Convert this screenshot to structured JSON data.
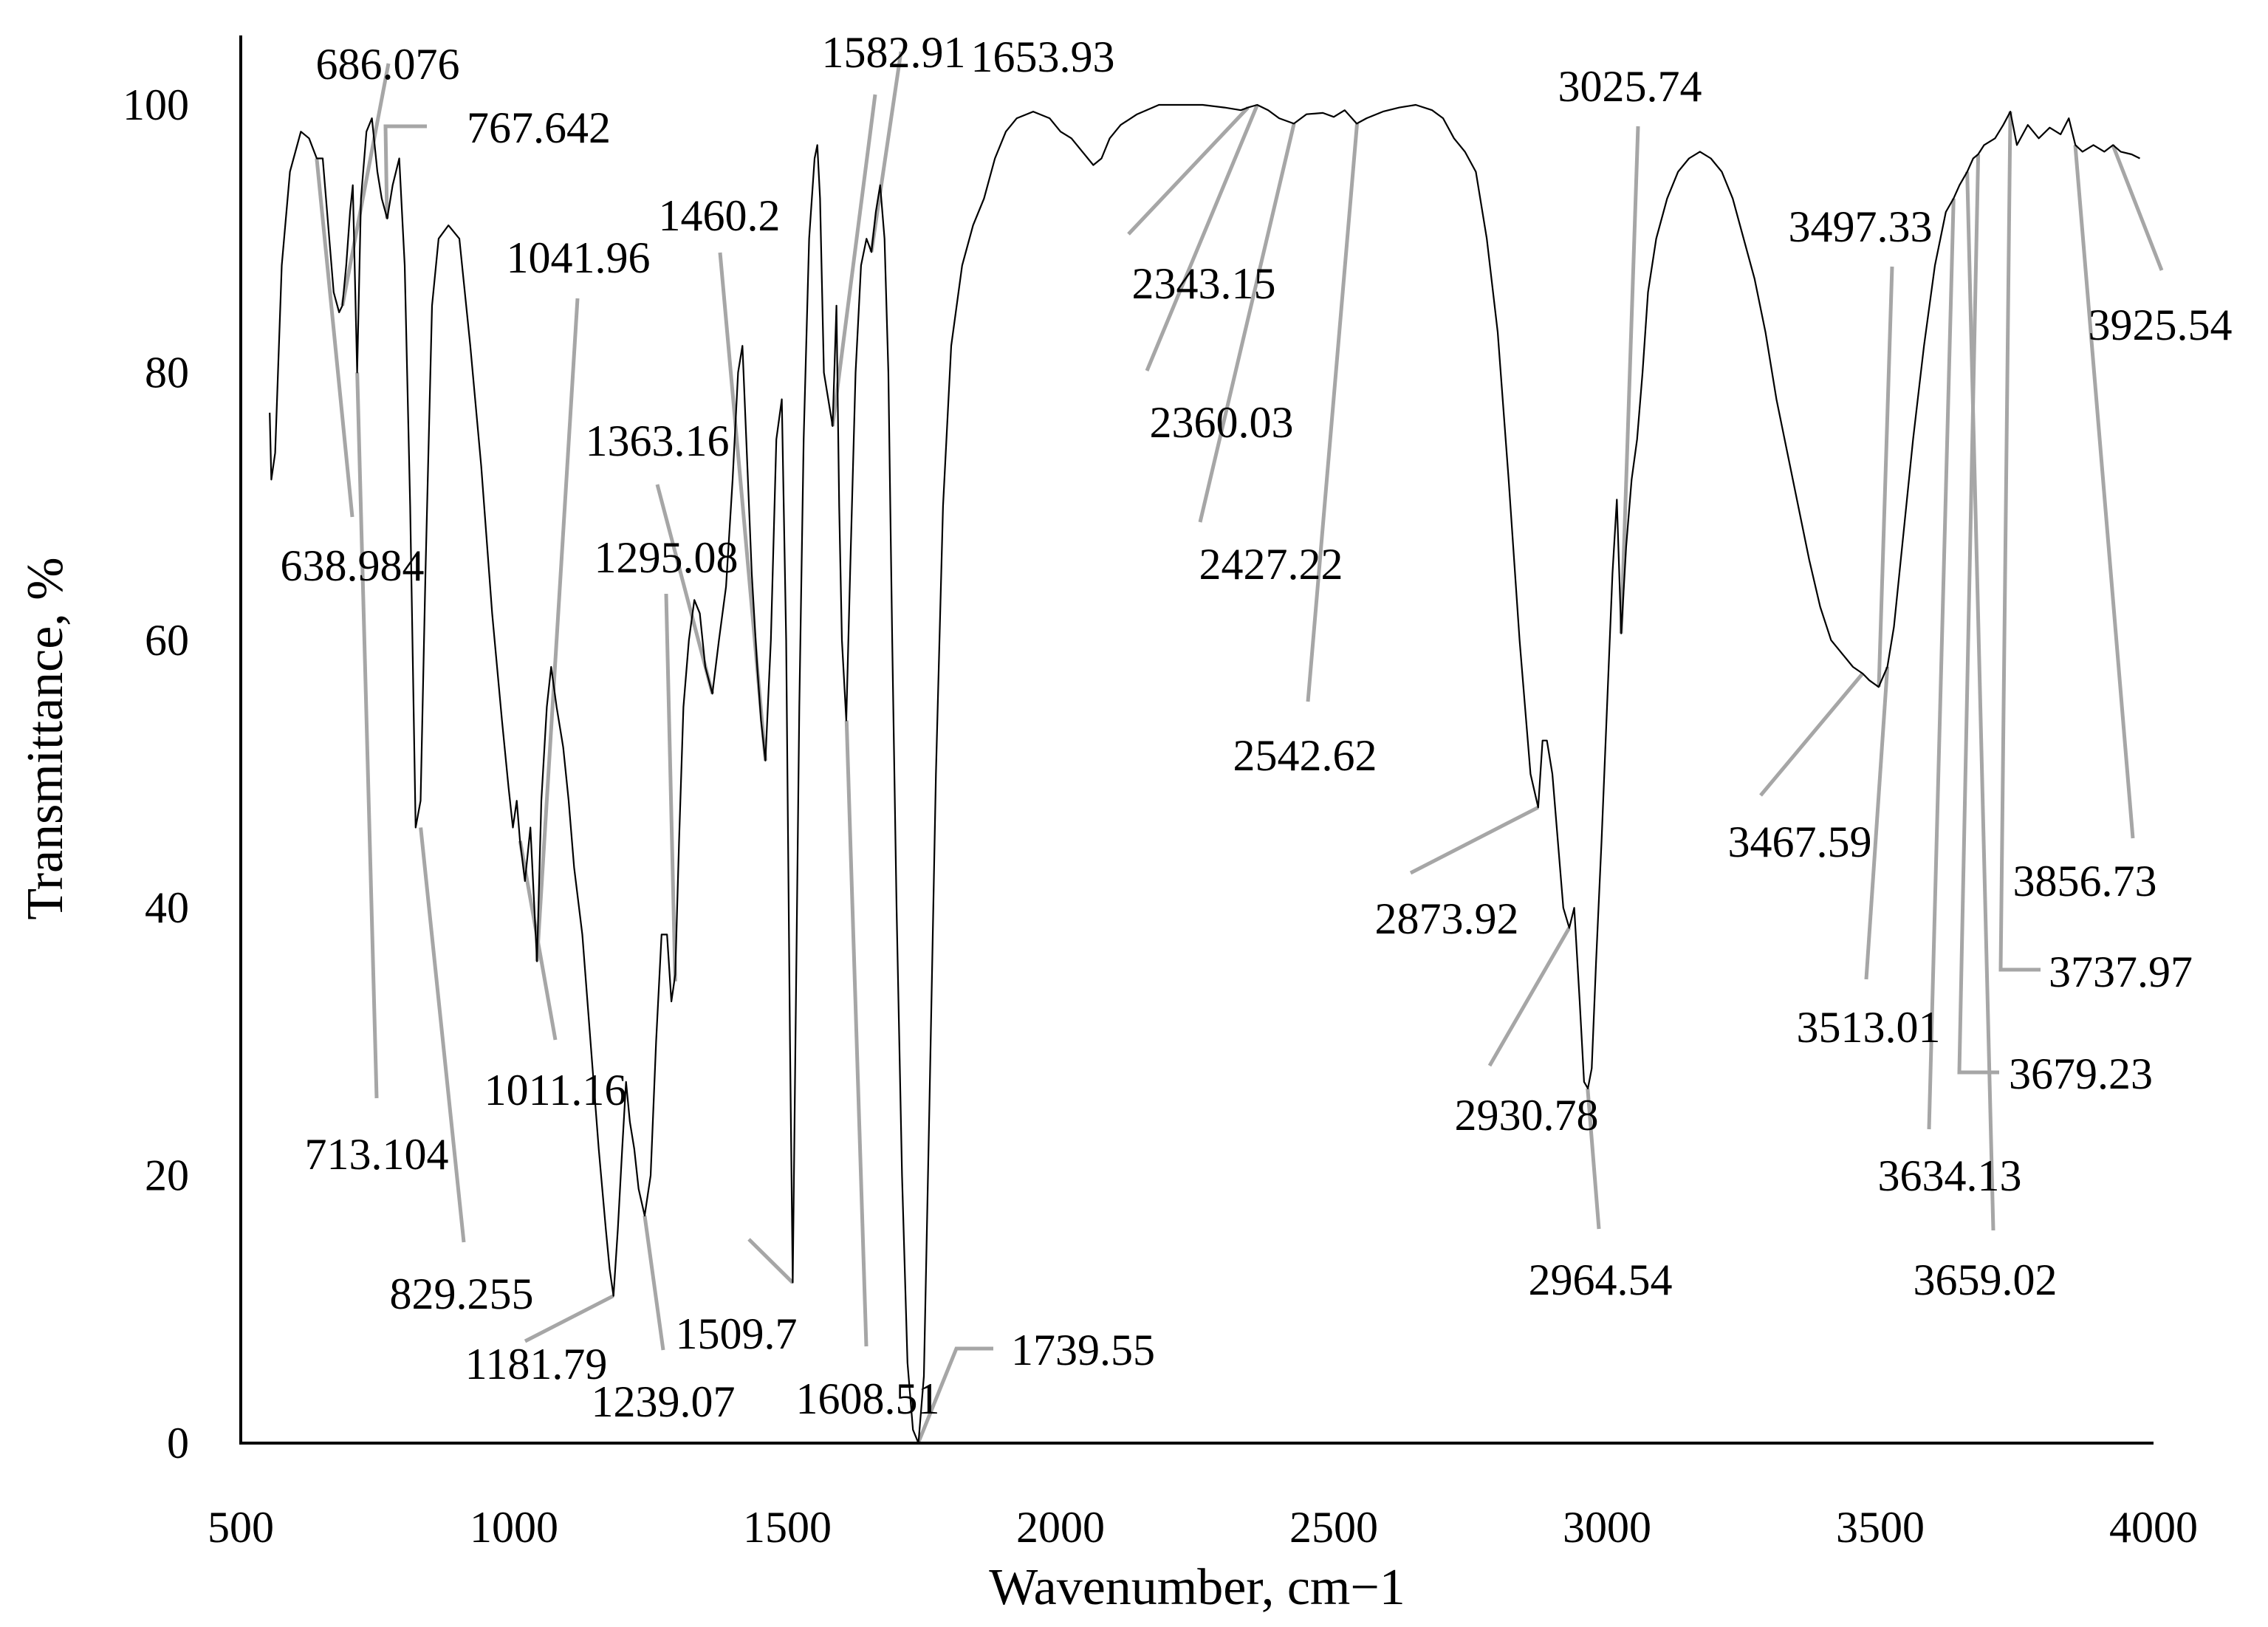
{
  "chart_data": {
    "type": "line",
    "title": "",
    "xlabel": "Wavenumber, cm−1",
    "ylabel": "Transmittance, %",
    "xlim": [
      500,
      4000
    ],
    "ylim": [
      0,
      100
    ],
    "x_ticks": [
      "500",
      "1000",
      "1500",
      "2000",
      "2500",
      "3000",
      "3500",
      "4000"
    ],
    "y_ticks": [
      "0",
      "20",
      "40",
      "60",
      "80",
      "100"
    ],
    "grid": false,
    "legend": "none",
    "series": [
      {
        "color": "#000000",
        "points": [
          [
            553,
            77
          ],
          [
            556,
            72
          ],
          [
            563,
            74
          ],
          [
            575,
            88
          ],
          [
            590,
            95
          ],
          [
            610,
            98
          ],
          [
            625,
            97.5
          ],
          [
            639,
            96
          ],
          [
            650,
            96
          ],
          [
            660,
            91
          ],
          [
            670,
            86
          ],
          [
            680,
            84.5
          ],
          [
            686,
            85
          ],
          [
            693,
            88
          ],
          [
            700,
            92
          ],
          [
            705,
            94
          ],
          [
            713,
            80
          ],
          [
            720,
            93
          ],
          [
            730,
            98
          ],
          [
            740,
            99
          ],
          [
            750,
            95
          ],
          [
            758,
            93
          ],
          [
            768,
            91.5
          ],
          [
            778,
            94
          ],
          [
            790,
            96
          ],
          [
            800,
            88
          ],
          [
            810,
            70
          ],
          [
            820,
            46
          ],
          [
            829,
            48
          ],
          [
            838,
            65
          ],
          [
            850,
            85
          ],
          [
            862,
            90
          ],
          [
            880,
            91
          ],
          [
            900,
            90
          ],
          [
            920,
            82
          ],
          [
            940,
            73
          ],
          [
            960,
            62
          ],
          [
            978,
            54
          ],
          [
            990,
            49
          ],
          [
            998,
            46
          ],
          [
            1005,
            48
          ],
          [
            1011,
            45
          ],
          [
            1020,
            42
          ],
          [
            1030,
            46
          ],
          [
            1042,
            36
          ],
          [
            1050,
            48
          ],
          [
            1060,
            55
          ],
          [
            1068,
            58
          ],
          [
            1078,
            55
          ],
          [
            1090,
            52
          ],
          [
            1100,
            48
          ],
          [
            1110,
            43
          ],
          [
            1125,
            38
          ],
          [
            1140,
            30
          ],
          [
            1155,
            22
          ],
          [
            1168,
            16
          ],
          [
            1175,
            13
          ],
          [
            1182,
            11
          ],
          [
            1190,
            16
          ],
          [
            1198,
            22
          ],
          [
            1205,
            27
          ],
          [
            1212,
            24
          ],
          [
            1220,
            22
          ],
          [
            1228,
            19
          ],
          [
            1239,
            17
          ],
          [
            1250,
            20
          ],
          [
            1260,
            30
          ],
          [
            1270,
            38
          ],
          [
            1280,
            38
          ],
          [
            1288,
            33
          ],
          [
            1295,
            35
          ],
          [
            1302,
            45
          ],
          [
            1310,
            55
          ],
          [
            1320,
            60
          ],
          [
            1330,
            63
          ],
          [
            1340,
            62
          ],
          [
            1350,
            58
          ],
          [
            1363,
            56
          ],
          [
            1375,
            60
          ],
          [
            1388,
            64
          ],
          [
            1400,
            72
          ],
          [
            1410,
            80
          ],
          [
            1418,
            82
          ],
          [
            1425,
            75
          ],
          [
            1435,
            65
          ],
          [
            1445,
            58
          ],
          [
            1452,
            54
          ],
          [
            1460,
            51
          ],
          [
            1470,
            60
          ],
          [
            1480,
            75
          ],
          [
            1490,
            78
          ],
          [
            1498,
            60
          ],
          [
            1505,
            30
          ],
          [
            1510,
            12
          ],
          [
            1515,
            30
          ],
          [
            1522,
            55
          ],
          [
            1530,
            75
          ],
          [
            1540,
            90
          ],
          [
            1550,
            96
          ],
          [
            1555,
            97
          ],
          [
            1560,
            93
          ],
          [
            1567,
            80
          ],
          [
            1575,
            78
          ],
          [
            1583,
            76
          ],
          [
            1590,
            85
          ],
          [
            1595,
            70
          ],
          [
            1600,
            60
          ],
          [
            1608,
            54
          ],
          [
            1615,
            65
          ],
          [
            1625,
            80
          ],
          [
            1635,
            88
          ],
          [
            1645,
            90
          ],
          [
            1654,
            89
          ],
          [
            1662,
            92
          ],
          [
            1670,
            94
          ],
          [
            1678,
            90
          ],
          [
            1685,
            80
          ],
          [
            1692,
            60
          ],
          [
            1700,
            40
          ],
          [
            1710,
            20
          ],
          [
            1720,
            6
          ],
          [
            1730,
            1
          ],
          [
            1740,
            0
          ],
          [
            1750,
            5
          ],
          [
            1760,
            25
          ],
          [
            1772,
            50
          ],
          [
            1785,
            70
          ],
          [
            1800,
            82
          ],
          [
            1820,
            88
          ],
          [
            1840,
            91
          ],
          [
            1860,
            93
          ],
          [
            1880,
            96
          ],
          [
            1900,
            98
          ],
          [
            1920,
            99
          ],
          [
            1950,
            99.5
          ],
          [
            1980,
            99
          ],
          [
            2000,
            98
          ],
          [
            2020,
            97.5
          ],
          [
            2040,
            96.5
          ],
          [
            2060,
            95.5
          ],
          [
            2075,
            96
          ],
          [
            2090,
            97.5
          ],
          [
            2110,
            98.5
          ],
          [
            2140,
            99.3
          ],
          [
            2180,
            100
          ],
          [
            2220,
            100
          ],
          [
            2260,
            100
          ],
          [
            2300,
            99.8
          ],
          [
            2330,
            99.6
          ],
          [
            2343,
            99.8
          ],
          [
            2360,
            100
          ],
          [
            2380,
            99.6
          ],
          [
            2400,
            99
          ],
          [
            2427,
            98.6
          ],
          [
            2450,
            99.3
          ],
          [
            2480,
            99.4
          ],
          [
            2500,
            99.1
          ],
          [
            2520,
            99.6
          ],
          [
            2542,
            98.6
          ],
          [
            2560,
            99
          ],
          [
            2590,
            99.5
          ],
          [
            2620,
            99.8
          ],
          [
            2650,
            100
          ],
          [
            2680,
            99.6
          ],
          [
            2700,
            99
          ],
          [
            2720,
            97.5
          ],
          [
            2740,
            96.5
          ],
          [
            2760,
            95
          ],
          [
            2780,
            90
          ],
          [
            2800,
            83
          ],
          [
            2820,
            72
          ],
          [
            2840,
            60
          ],
          [
            2860,
            50
          ],
          [
            2874,
            47.5
          ],
          [
            2882,
            52.5
          ],
          [
            2890,
            52.5
          ],
          [
            2900,
            50
          ],
          [
            2910,
            45
          ],
          [
            2920,
            40
          ],
          [
            2931,
            38.5
          ],
          [
            2940,
            40
          ],
          [
            2950,
            33
          ],
          [
            2958,
            27
          ],
          [
            2965,
            26.5
          ],
          [
            2972,
            28
          ],
          [
            2980,
            36
          ],
          [
            2990,
            45
          ],
          [
            3000,
            55
          ],
          [
            3010,
            65
          ],
          [
            3018,
            70.5
          ],
          [
            3026,
            60.5
          ],
          [
            3035,
            67
          ],
          [
            3045,
            72
          ],
          [
            3055,
            75
          ],
          [
            3065,
            80
          ],
          [
            3075,
            86
          ],
          [
            3090,
            90
          ],
          [
            3110,
            93
          ],
          [
            3130,
            95
          ],
          [
            3150,
            96
          ],
          [
            3170,
            96.5
          ],
          [
            3190,
            96
          ],
          [
            3210,
            95
          ],
          [
            3230,
            93
          ],
          [
            3250,
            90
          ],
          [
            3270,
            87
          ],
          [
            3290,
            83
          ],
          [
            3310,
            78
          ],
          [
            3330,
            74
          ],
          [
            3350,
            70
          ],
          [
            3370,
            66
          ],
          [
            3390,
            62.5
          ],
          [
            3410,
            60
          ],
          [
            3430,
            59
          ],
          [
            3450,
            58
          ],
          [
            3468,
            57.5
          ],
          [
            3480,
            57
          ],
          [
            3497,
            56.5
          ],
          [
            3513,
            58
          ],
          [
            3525,
            61
          ],
          [
            3540,
            67
          ],
          [
            3560,
            75
          ],
          [
            3580,
            82
          ],
          [
            3600,
            88
          ],
          [
            3620,
            92
          ],
          [
            3634,
            93
          ],
          [
            3645,
            94
          ],
          [
            3659,
            95
          ],
          [
            3670,
            96
          ],
          [
            3679,
            96.3
          ],
          [
            3690,
            97
          ],
          [
            3710,
            97.5
          ],
          [
            3725,
            98.5
          ],
          [
            3738,
            99.5
          ],
          [
            3750,
            97
          ],
          [
            3770,
            98.5
          ],
          [
            3790,
            97.5
          ],
          [
            3810,
            98.3
          ],
          [
            3830,
            97.8
          ],
          [
            3845,
            99
          ],
          [
            3857,
            97
          ],
          [
            3870,
            96.5
          ],
          [
            3890,
            97
          ],
          [
            3910,
            96.5
          ],
          [
            3926,
            97
          ],
          [
            3940,
            96.5
          ],
          [
            3960,
            96.3
          ],
          [
            3975,
            96
          ]
        ]
      }
    ],
    "annotations": [
      {
        "text": "686.076",
        "x": 686.076,
        "y": 85
      },
      {
        "text": "767.642",
        "x": 767.642,
        "y": 91.5
      },
      {
        "text": "1041.96",
        "x": 1041.96,
        "y": 36
      },
      {
        "text": "1460.2",
        "x": 1460.2,
        "y": 51
      },
      {
        "text": "1582.91",
        "x": 1582.91,
        "y": 76
      },
      {
        "text": "1653.93",
        "x": 1653.93,
        "y": 89
      },
      {
        "text": "1363.16",
        "x": 1363.16,
        "y": 56
      },
      {
        "text": "1295.08",
        "x": 1295.08,
        "y": 34.5
      },
      {
        "text": "638.984",
        "x": 638.984,
        "y": 96
      },
      {
        "text": "713.104",
        "x": 713.104,
        "y": 80
      },
      {
        "text": "829.255",
        "x": 829.255,
        "y": 46
      },
      {
        "text": "1011.16",
        "x": 1011.16,
        "y": 45
      },
      {
        "text": "1181.79",
        "x": 1181.79,
        "y": 11
      },
      {
        "text": "1239.07",
        "x": 1239.07,
        "y": 17
      },
      {
        "text": "1509.7",
        "x": 1509.7,
        "y": 12
      },
      {
        "text": "1608.51",
        "x": 1608.51,
        "y": 54
      },
      {
        "text": "1739.55",
        "x": 1739.55,
        "y": 0
      },
      {
        "text": "2343.15",
        "x": 2343.15,
        "y": 99.8
      },
      {
        "text": "2360.03",
        "x": 2360.03,
        "y": 100
      },
      {
        "text": "2427.22",
        "x": 2427.22,
        "y": 98.6
      },
      {
        "text": "2542.62",
        "x": 2542.62,
        "y": 98.6
      },
      {
        "text": "3025.74",
        "x": 3025.74,
        "y": 60.5
      },
      {
        "text": "2873.92",
        "x": 2873.92,
        "y": 47.5
      },
      {
        "text": "2930.78",
        "x": 2930.78,
        "y": 38.5
      },
      {
        "text": "2964.54",
        "x": 2964.54,
        "y": 26.5
      },
      {
        "text": "3497.33",
        "x": 3497.33,
        "y": 56.5
      },
      {
        "text": "3467.59",
        "x": 3467.59,
        "y": 57.5
      },
      {
        "text": "3513.01",
        "x": 3513.01,
        "y": 58
      },
      {
        "text": "3634.13",
        "x": 3634.13,
        "y": 93
      },
      {
        "text": "3659.02",
        "x": 3659.02,
        "y": 95
      },
      {
        "text": "3679.23",
        "x": 3679.23,
        "y": 96.3
      },
      {
        "text": "3737.97",
        "x": 3737.97,
        "y": 99.5
      },
      {
        "text": "3856.73",
        "x": 3856.73,
        "y": 97
      },
      {
        "text": "3925.54",
        "x": 3925.54,
        "y": 97
      }
    ]
  }
}
